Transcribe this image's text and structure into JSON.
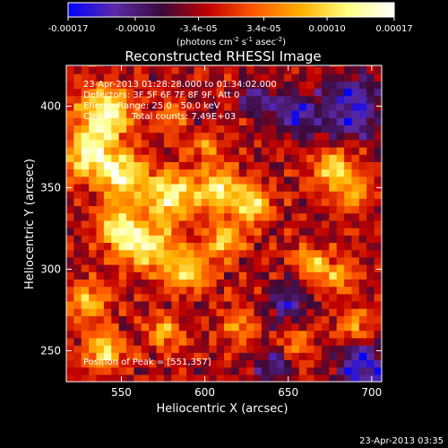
{
  "chart_data": {
    "type": "heatmap",
    "title": "Reconstructed RHESSI Image",
    "xlabel": "Heliocentric X (arcsec)",
    "ylabel": "Heliocentric Y (arcsec)",
    "xlim": [
      517,
      706
    ],
    "ylim": [
      231,
      425
    ],
    "x_ticks": [
      550,
      600,
      650,
      700
    ],
    "y_ticks": [
      250,
      300,
      350,
      400
    ],
    "grid": false,
    "colormap": [
      "#0000ff",
      "#5b2aa8",
      "#3a0a3a",
      "#c00000",
      "#ff5a00",
      "#ffb000",
      "#ffff80",
      "#ffffff"
    ],
    "colorbar": {
      "vmin": -0.00017,
      "vmax": 0.00017,
      "ticks": [
        -0.00017,
        -0.0001,
        -3.4e-05,
        3.4e-05,
        0.0001,
        0.00017
      ],
      "tick_labels": [
        "-0.00017",
        "-0.00010",
        "-3.4e-05",
        "3.4e-05",
        "0.00010",
        "0.00017"
      ],
      "unit_label_parts": [
        "(photons cm",
        "-2",
        " s",
        "-1",
        " asec",
        "-2",
        ")"
      ]
    },
    "annotations": {
      "time_range": "23-Apr-2013 01:28:28.000 to 01:34:02.000",
      "detectors": "Detectors: 3F 5F 6F 7F 8F 9F, Att 0",
      "energy": "Energy Range: 25.0 - 50.0 keV",
      "algorithm": "Clean",
      "total_counts": "Total counts: 7.49E+03",
      "peak": "Position of Peak = [551,357]"
    },
    "peak_position": [
      551,
      357
    ],
    "timestamp": "23-Apr-2013 03:35",
    "blobs": [
      {
        "x": 540,
        "y": 395,
        "r": 16,
        "w": 1.0
      },
      {
        "x": 530,
        "y": 370,
        "r": 14,
        "w": 0.9
      },
      {
        "x": 551,
        "y": 357,
        "r": 14,
        "w": 1.0
      },
      {
        "x": 580,
        "y": 345,
        "r": 14,
        "w": 0.95
      },
      {
        "x": 565,
        "y": 315,
        "r": 15,
        "w": 0.9
      },
      {
        "x": 548,
        "y": 325,
        "r": 12,
        "w": 0.85
      },
      {
        "x": 590,
        "y": 300,
        "r": 13,
        "w": 0.8
      },
      {
        "x": 608,
        "y": 350,
        "r": 13,
        "w": 0.9
      },
      {
        "x": 628,
        "y": 340,
        "r": 11,
        "w": 0.8
      },
      {
        "x": 612,
        "y": 318,
        "r": 10,
        "w": 0.7
      },
      {
        "x": 530,
        "y": 280,
        "r": 11,
        "w": 0.7
      },
      {
        "x": 540,
        "y": 250,
        "r": 12,
        "w": 0.75
      },
      {
        "x": 575,
        "y": 262,
        "r": 10,
        "w": 0.6
      },
      {
        "x": 620,
        "y": 265,
        "r": 10,
        "w": 0.55
      },
      {
        "x": 678,
        "y": 360,
        "r": 12,
        "w": 0.8
      },
      {
        "x": 690,
        "y": 345,
        "r": 9,
        "w": 0.6
      },
      {
        "x": 665,
        "y": 305,
        "r": 10,
        "w": 0.65
      },
      {
        "x": 680,
        "y": 295,
        "r": 9,
        "w": 0.6
      },
      {
        "x": 690,
        "y": 265,
        "r": 10,
        "w": 0.55
      },
      {
        "x": 655,
        "y": 255,
        "r": 9,
        "w": 0.5
      },
      {
        "x": 580,
        "y": 395,
        "r": 8,
        "w": 0.5
      },
      {
        "x": 600,
        "y": 375,
        "r": 8,
        "w": 0.5
      }
    ],
    "cold_spots": [
      {
        "x": 690,
        "y": 400,
        "r": 18,
        "w": 1.0
      },
      {
        "x": 655,
        "y": 395,
        "r": 14,
        "w": 0.9
      },
      {
        "x": 695,
        "y": 240,
        "r": 16,
        "w": 1.0
      },
      {
        "x": 650,
        "y": 280,
        "r": 12,
        "w": 0.8
      },
      {
        "x": 630,
        "y": 405,
        "r": 10,
        "w": 0.7
      },
      {
        "x": 640,
        "y": 240,
        "r": 10,
        "w": 0.7
      }
    ]
  }
}
